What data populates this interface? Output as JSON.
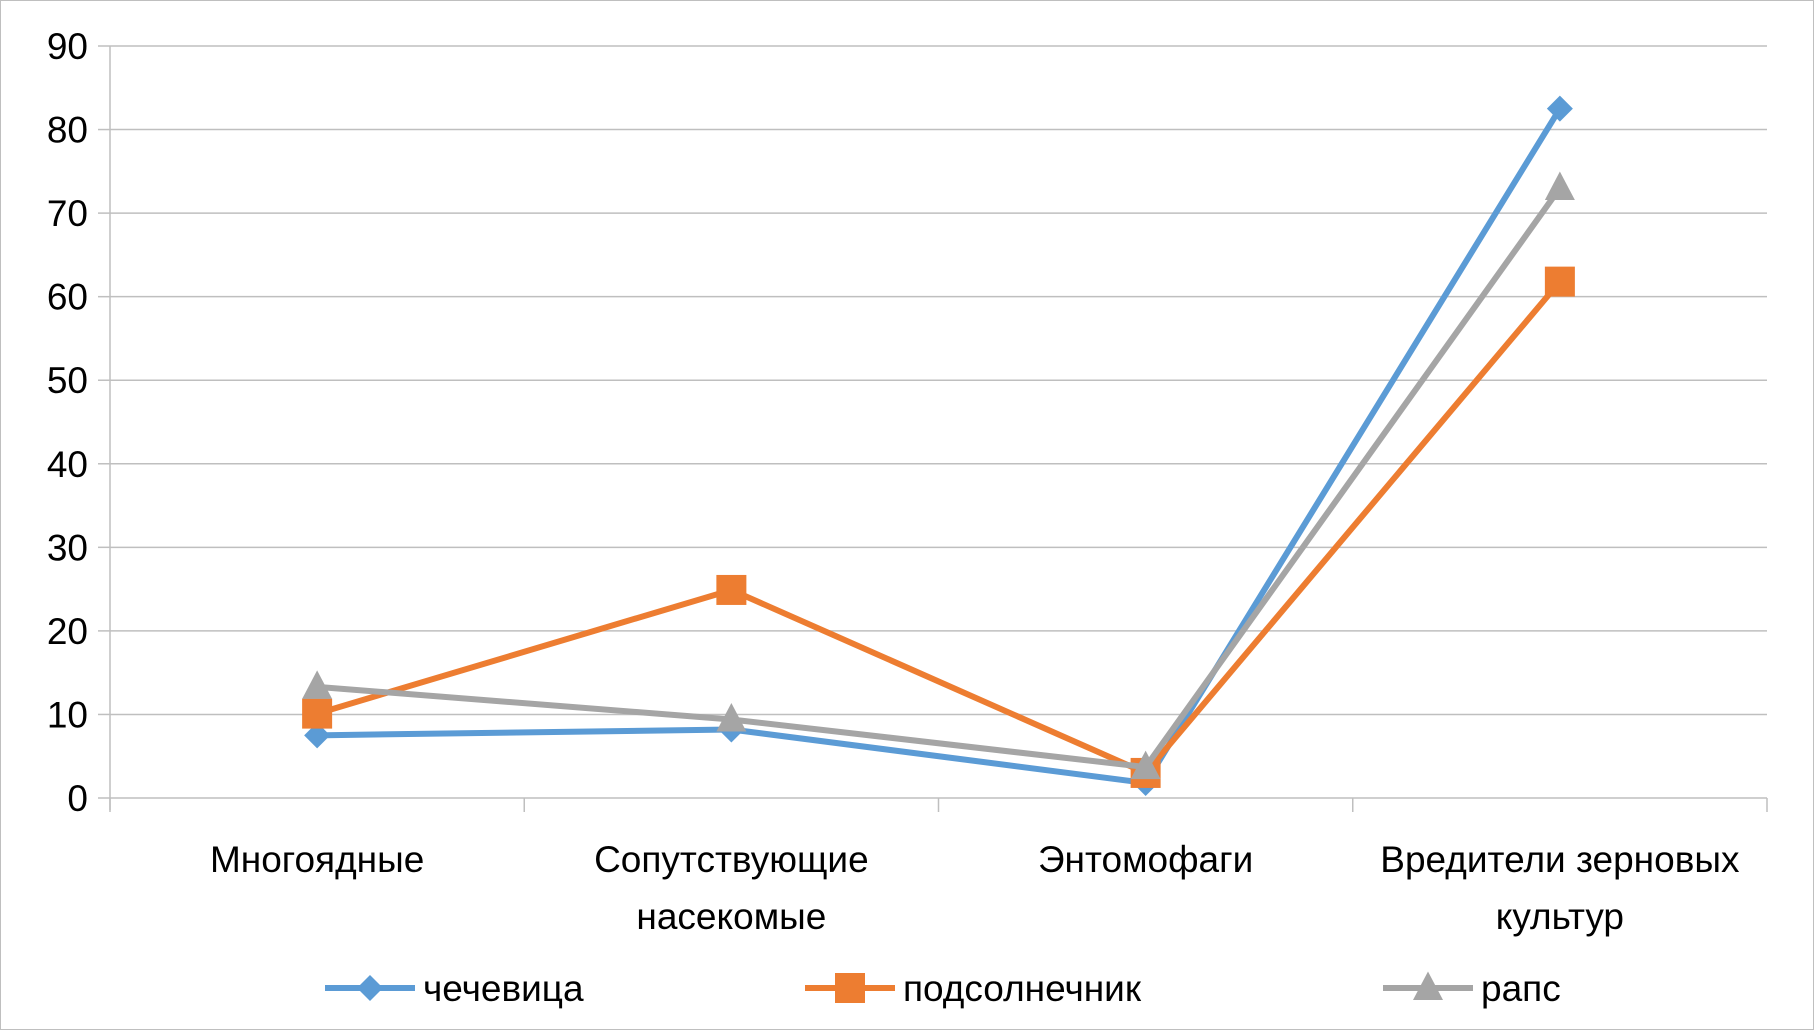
{
  "chart_data": {
    "type": "line",
    "title": "",
    "xlabel": "",
    "ylabel": "",
    "categories": [
      [
        "Многоядные"
      ],
      [
        "Сопутствующие",
        "насекомые"
      ],
      [
        "Энтомофаги"
      ],
      [
        "Вредители зерновых",
        "культур"
      ]
    ],
    "ylim": [
      0,
      90
    ],
    "yticks": [
      0,
      10,
      20,
      30,
      40,
      50,
      60,
      70,
      80,
      90
    ],
    "grid": true,
    "legend_position": "bottom",
    "series": [
      {
        "name": "чечевица",
        "color": "#5b9bd5",
        "marker": "diamond",
        "values": [
          7.5,
          8.2,
          1.8,
          82.5
        ]
      },
      {
        "name": "подсолнечник",
        "color": "#ed7d31",
        "marker": "square",
        "values": [
          10.1,
          24.9,
          3.0,
          61.8
        ]
      },
      {
        "name": "рапс",
        "color": "#a5a5a5",
        "marker": "triangle",
        "values": [
          13.3,
          9.4,
          3.7,
          73.0
        ]
      }
    ]
  }
}
